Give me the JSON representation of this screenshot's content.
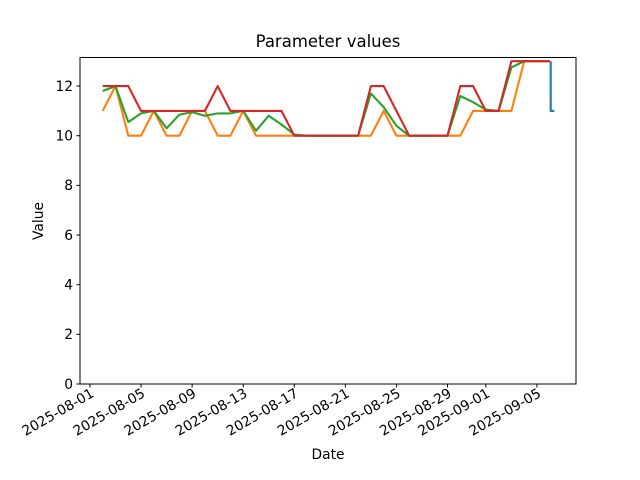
{
  "figure": {
    "background": "#ffffff",
    "text_color": "#000000"
  },
  "chart_data": {
    "type": "line",
    "title": "Parameter values",
    "xlabel": "Date",
    "ylabel": "Value",
    "grid": false,
    "legend": "none",
    "ylim": [
      0,
      13.15
    ],
    "xlim_days": [
      -0.78,
      38.06
    ],
    "x_axis_origin_date": "2025-08-01",
    "yticks": [
      0,
      2,
      4,
      6,
      8,
      10,
      12
    ],
    "xticks": [
      {
        "day": 0,
        "label": "2025-08-01"
      },
      {
        "day": 4,
        "label": "2025-08-05"
      },
      {
        "day": 8,
        "label": "2025-08-09"
      },
      {
        "day": 12,
        "label": "2025-08-13"
      },
      {
        "day": 16,
        "label": "2025-08-17"
      },
      {
        "day": 20,
        "label": "2025-08-21"
      },
      {
        "day": 24,
        "label": "2025-08-25"
      },
      {
        "day": 28,
        "label": "2025-08-29"
      },
      {
        "day": 31,
        "label": "2025-09-01"
      },
      {
        "day": 35,
        "label": "2025-09-05"
      }
    ],
    "dates": [
      "2025-08-02",
      "2025-08-03",
      "2025-08-04",
      "2025-08-05",
      "2025-08-06",
      "2025-08-07",
      "2025-08-08",
      "2025-08-09",
      "2025-08-10",
      "2025-08-11",
      "2025-08-12",
      "2025-08-13",
      "2025-08-14",
      "2025-08-15",
      "2025-08-16",
      "2025-08-17",
      "2025-08-18",
      "2025-08-19",
      "2025-08-20",
      "2025-08-21",
      "2025-08-22",
      "2025-08-23",
      "2025-08-24",
      "2025-08-25",
      "2025-08-26",
      "2025-08-27",
      "2025-08-28",
      "2025-08-29",
      "2025-08-30",
      "2025-08-31",
      "2025-09-01",
      "2025-09-02",
      "2025-09-03",
      "2025-09-04",
      "2025-09-05",
      "2025-09-06"
    ],
    "series": [
      {
        "name": "blue",
        "color": "#1f77b4",
        "points_days": [
          [
            36.08,
            13
          ],
          [
            36.08,
            11
          ],
          [
            36.36,
            11
          ]
        ]
      },
      {
        "name": "orange",
        "color": "#ff7f0e",
        "start_day": 1,
        "values": [
          11,
          12,
          10,
          10,
          11,
          10,
          10,
          11,
          11,
          10,
          10,
          11,
          10,
          10,
          10,
          10,
          10,
          10,
          10,
          10,
          10,
          10,
          11,
          10,
          10,
          10,
          10,
          10,
          10,
          11,
          11,
          11,
          11,
          13,
          13,
          13
        ]
      },
      {
        "name": "green",
        "color": "#2ca02c",
        "start_day": 1,
        "values": [
          11.8,
          12,
          10.55,
          10.9,
          11,
          10.3,
          10.85,
          10.95,
          10.8,
          10.9,
          10.9,
          11,
          10.2,
          10.8,
          10.45,
          10.05,
          10,
          10,
          10,
          10,
          10,
          11.7,
          11.15,
          10.4,
          10,
          10,
          10,
          10,
          11.6,
          11.35,
          11.05,
          11,
          12.75,
          13,
          13,
          13
        ]
      },
      {
        "name": "red",
        "color": "#d62728",
        "start_day": 1,
        "values": [
          12,
          12,
          12,
          11,
          11,
          11,
          11,
          11,
          11,
          12,
          11,
          11,
          11,
          11,
          11,
          10,
          10,
          10,
          10,
          10,
          10,
          12,
          12,
          11,
          10,
          10,
          10,
          10,
          12,
          12,
          11,
          11,
          13,
          13,
          13,
          13
        ]
      }
    ]
  }
}
